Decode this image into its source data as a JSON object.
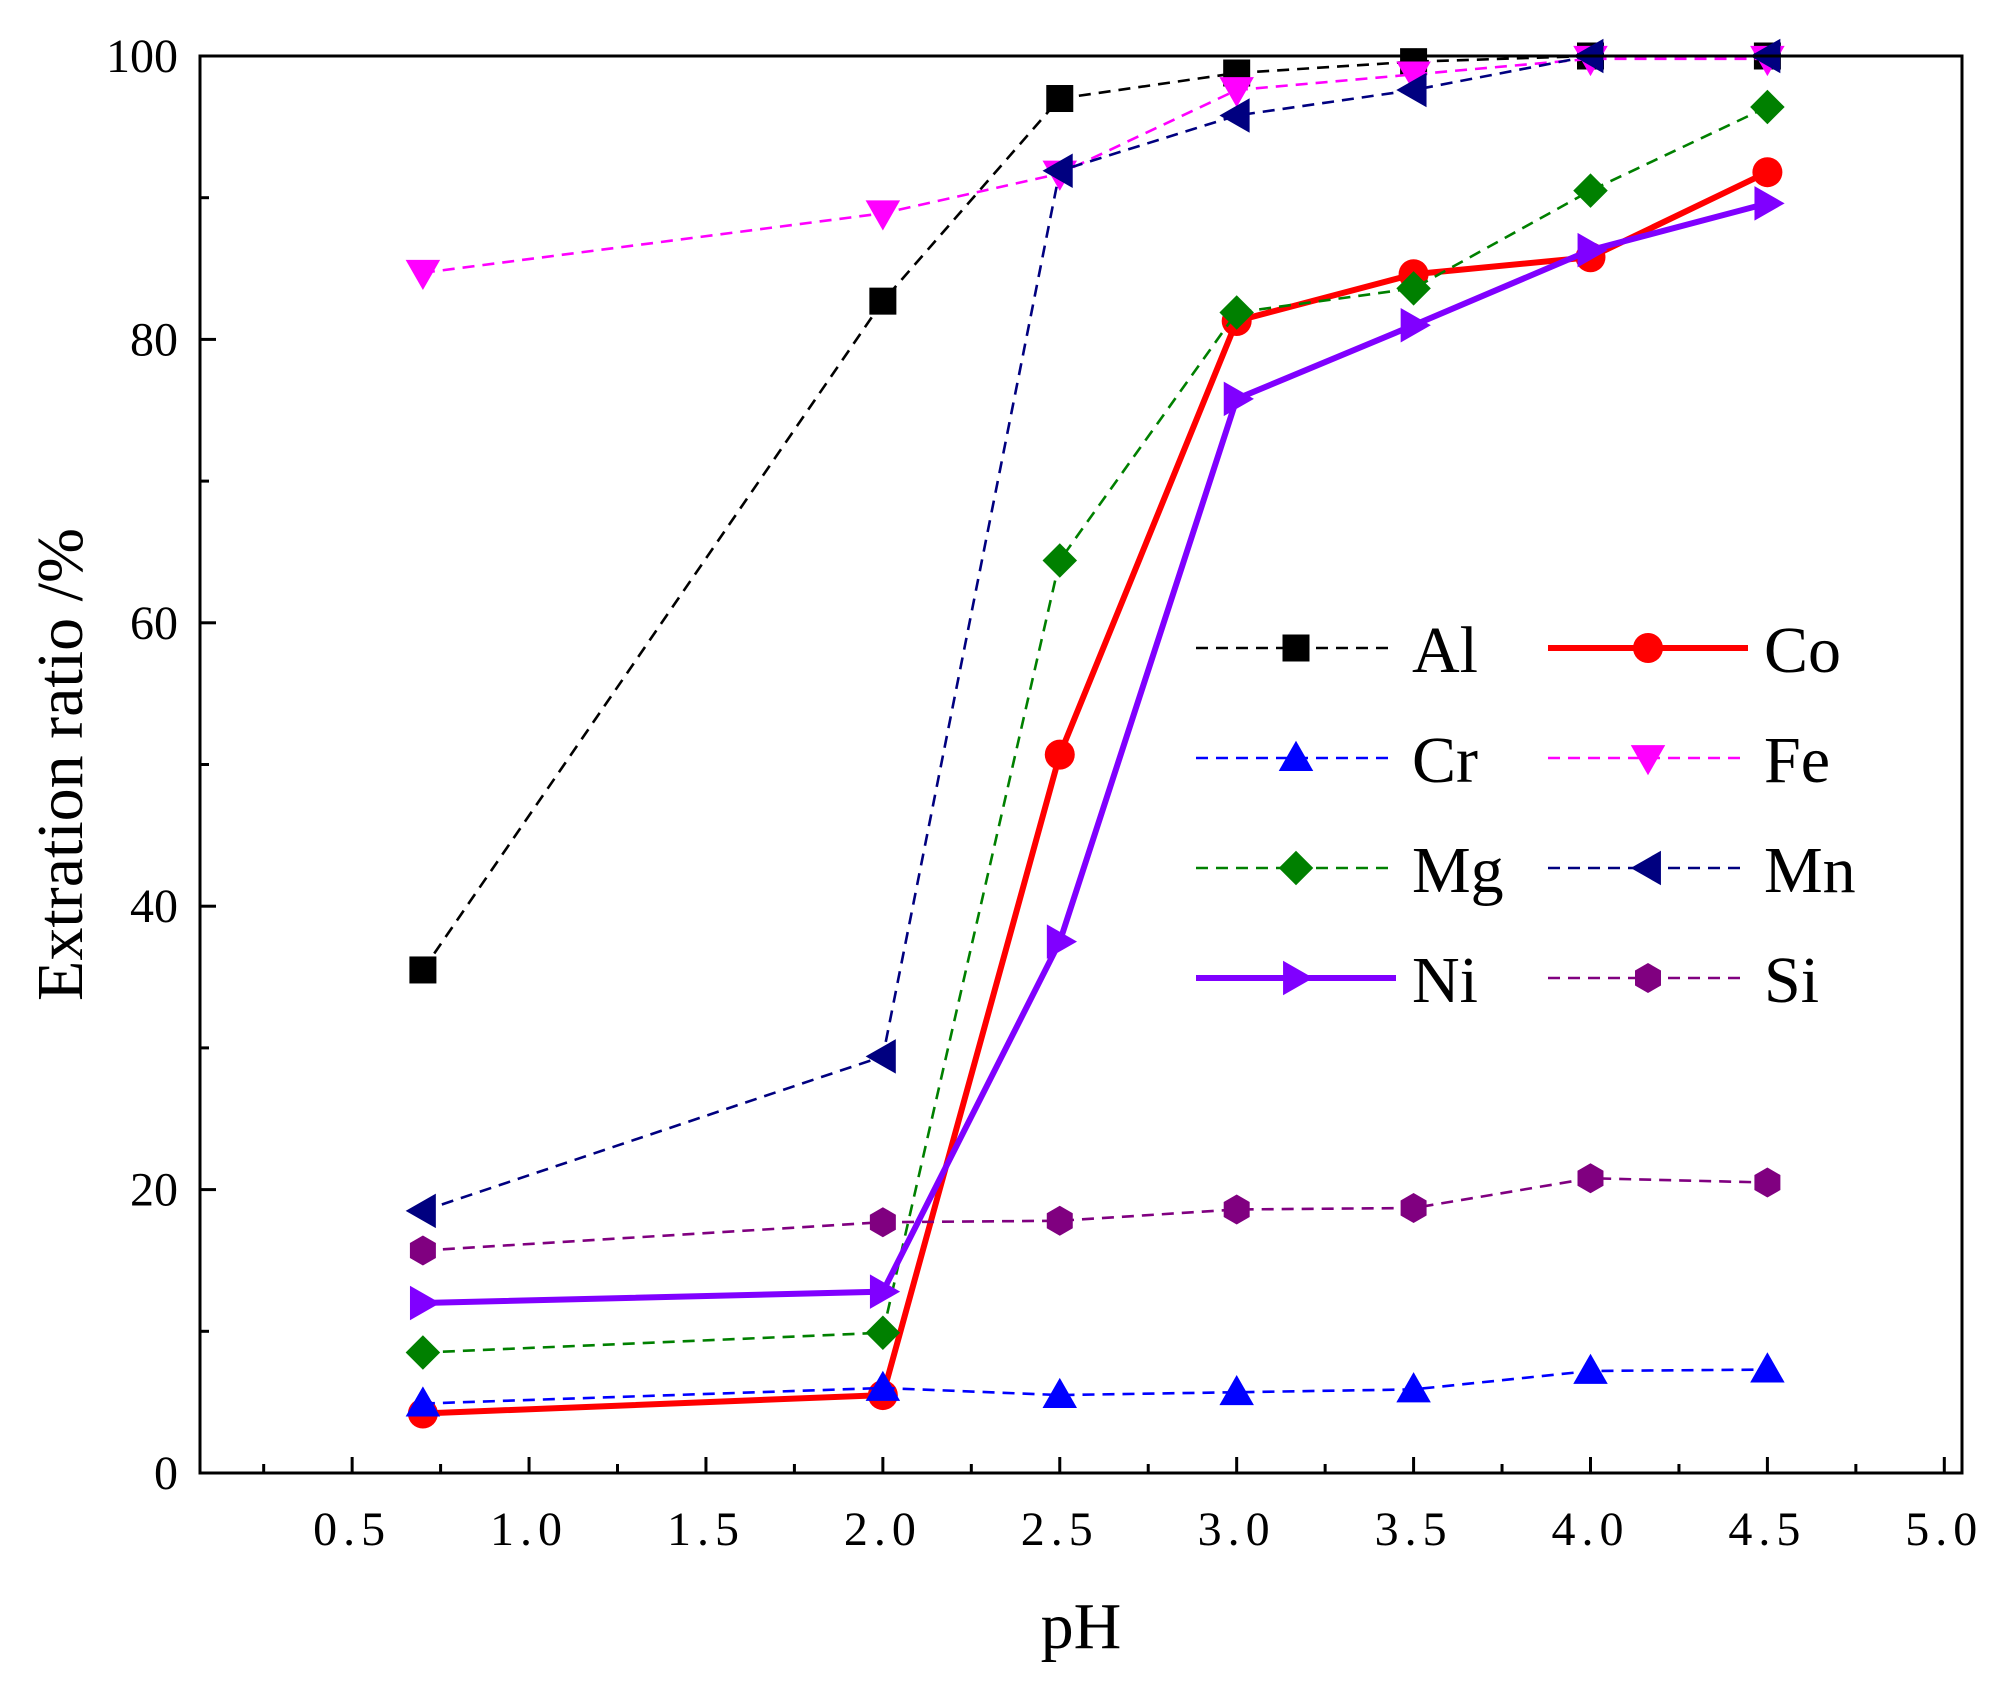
{
  "chart_data": {
    "type": "line",
    "title": "",
    "xlabel": "pH",
    "ylabel": "Extration ratio /%",
    "xlim": [
      0.07,
      5.05
    ],
    "ylim": [
      0,
      100
    ],
    "xticks": [
      0.5,
      1.0,
      1.5,
      2.0,
      2.5,
      3.0,
      3.5,
      4.0,
      4.5,
      5.0
    ],
    "xtick_labels": [
      "0.5",
      "1.0",
      "1.5",
      "2.0",
      "2.5",
      "3.0",
      "3.5",
      "4.0",
      "4.5",
      "5.0"
    ],
    "yticks": [
      0,
      20,
      40,
      60,
      80,
      100
    ],
    "ytick_labels": [
      "0",
      "20",
      "40",
      "60",
      "80",
      "100"
    ],
    "x": [
      0.7,
      2.0,
      2.5,
      3.0,
      3.5,
      4.0,
      4.5
    ],
    "legend_position": "center-right",
    "series": [
      {
        "name": "Al",
        "color": "#000000",
        "style": "dashed",
        "marker": "square",
        "values": [
          35.5,
          82.7,
          97.0,
          98.8,
          99.6,
          100.0,
          100.0
        ]
      },
      {
        "name": "Co",
        "color": "#ff0000",
        "style": "solid",
        "marker": "circle",
        "values": [
          4.2,
          5.5,
          50.7,
          81.3,
          84.6,
          85.8,
          91.8
        ]
      },
      {
        "name": "Cr",
        "color": "#0000ff",
        "style": "dashed",
        "marker": "triangle-up",
        "values": [
          4.9,
          6.0,
          5.5,
          5.7,
          5.9,
          7.2,
          7.3
        ]
      },
      {
        "name": "Fe",
        "color": "#ff00ff",
        "style": "dashed",
        "marker": "triangle-down",
        "values": [
          84.7,
          88.9,
          91.7,
          97.6,
          98.7,
          99.8,
          99.8
        ]
      },
      {
        "name": "Mg",
        "color": "#008000",
        "style": "dashed",
        "marker": "diamond",
        "values": [
          8.5,
          9.9,
          64.4,
          81.9,
          83.6,
          90.5,
          96.4
        ]
      },
      {
        "name": "Mn",
        "color": "#000080",
        "style": "dashed",
        "marker": "triangle-left",
        "values": [
          18.5,
          29.4,
          91.9,
          95.8,
          97.6,
          100.0,
          100.0
        ]
      },
      {
        "name": "Ni",
        "color": "#8000ff",
        "style": "solid",
        "marker": "triangle-right",
        "values": [
          12.0,
          12.8,
          37.5,
          75.8,
          81.0,
          86.3,
          89.6
        ]
      },
      {
        "name": "Si",
        "color": "#800080",
        "style": "dashed",
        "marker": "hexagon",
        "values": [
          15.7,
          17.7,
          17.8,
          18.6,
          18.7,
          20.8,
          20.5
        ]
      }
    ]
  }
}
